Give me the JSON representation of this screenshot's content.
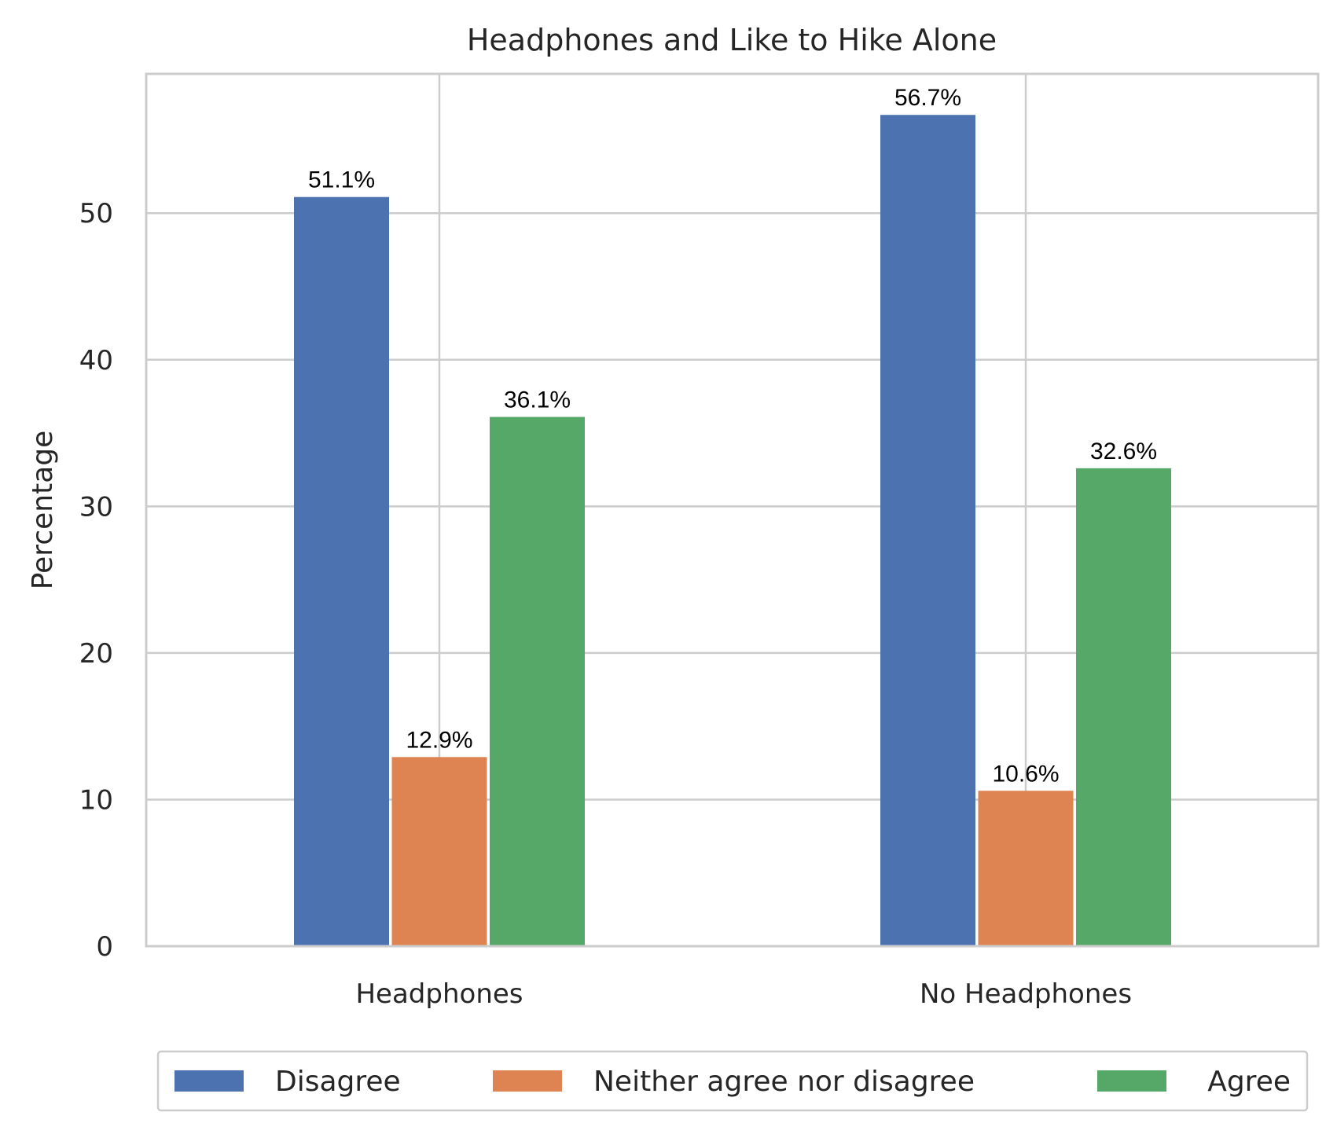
{
  "chart_data": {
    "type": "bar",
    "title": "Headphones and Like to Hike Alone",
    "xlabel": "",
    "ylabel": "Percentage",
    "categories": [
      "Headphones",
      "No Headphones"
    ],
    "series": [
      {
        "name": "Disagree",
        "values": [
          51.1,
          56.7
        ],
        "labels": [
          "51.1%",
          "56.7%"
        ],
        "color": "#4c72b0"
      },
      {
        "name": "Neither agree nor disagree",
        "values": [
          12.9,
          10.6
        ],
        "labels": [
          "12.9%",
          "10.6%"
        ],
        "color": "#dd8452"
      },
      {
        "name": "Agree",
        "values": [
          36.1,
          32.6
        ],
        "labels": [
          "36.1%",
          "32.6%"
        ],
        "color": "#55a868"
      }
    ],
    "yticks": [
      0,
      10,
      20,
      30,
      40,
      50
    ],
    "ylim": [
      0,
      59.5
    ],
    "grid": true,
    "legend_position": "bottom-center"
  }
}
